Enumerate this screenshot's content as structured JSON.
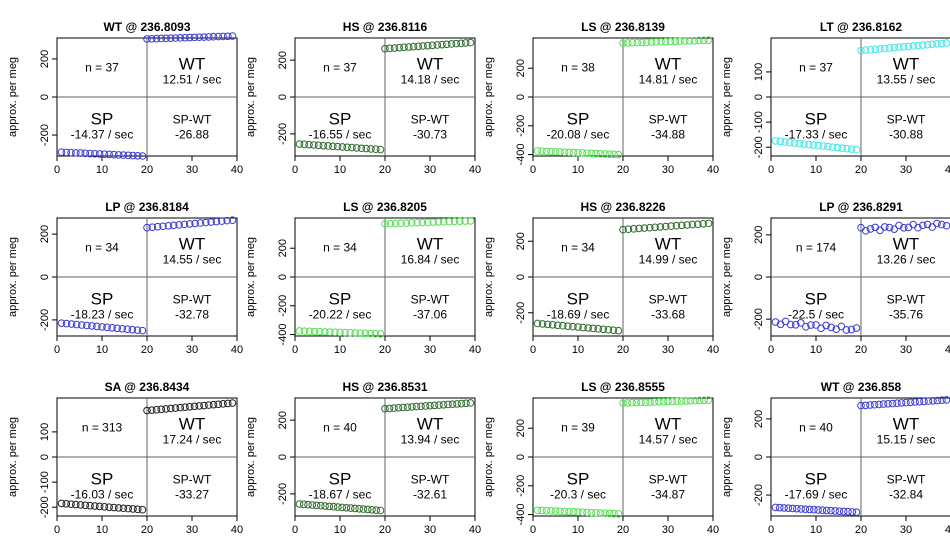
{
  "y_axis_label": "approx. per meg",
  "colors": {
    "blue": "#3b3bd6",
    "green_dark": "#2e6b2e",
    "green_light": "#54e054",
    "cyan": "#3fe8e8",
    "black": "#222222"
  },
  "chart_data": [
    {
      "type": "scatter",
      "title": "WT @ 236.8093",
      "n": "n = 37",
      "wt_label": "WT",
      "wt_rate": "12.51 / sec",
      "sp_label": "SP",
      "sp_rate": "-14.37 / sec",
      "diff_label": "SP-WT",
      "diff_value": "-26.88",
      "color": "blue",
      "xlim": [
        0,
        40
      ],
      "ylim": [
        -310,
        310
      ],
      "yticks": [
        -200,
        0,
        200
      ],
      "sp": {
        "n": 18,
        "start": -290,
        "end": -310,
        "noise": 0
      },
      "wt": {
        "n": 19,
        "start": 305,
        "end": 320,
        "noise": 0
      }
    },
    {
      "type": "scatter",
      "title": "HS @ 236.8116",
      "n": "n = 37",
      "wt_label": "WT",
      "wt_rate": "14.18 / sec",
      "sp_label": "SP",
      "sp_rate": "-16.55 / sec",
      "diff_label": "SP-WT",
      "diff_value": "-30.73",
      "color": "green_dark",
      "xlim": [
        0,
        40
      ],
      "ylim": [
        -320,
        320
      ],
      "yticks": [
        -200,
        0,
        200
      ],
      "sp": {
        "n": 18,
        "start": -255,
        "end": -285,
        "noise": 0
      },
      "wt": {
        "n": 19,
        "start": 262,
        "end": 295,
        "noise": 0
      }
    },
    {
      "type": "scatter",
      "title": "LS @ 236.8139",
      "n": "n = 38",
      "wt_label": "WT",
      "wt_rate": "14.81 / sec",
      "sp_label": "SP",
      "sp_rate": "-20.08 / sec",
      "diff_label": "SP-WT",
      "diff_value": "-34.88",
      "color": "green_light",
      "xlim": [
        0,
        40
      ],
      "ylim": [
        -410,
        410
      ],
      "yticks": [
        -400,
        -200,
        0,
        200
      ],
      "sp": {
        "n": 19,
        "start": -375,
        "end": -400,
        "noise": 0
      },
      "wt": {
        "n": 19,
        "start": 375,
        "end": 395,
        "noise": 0
      }
    },
    {
      "type": "scatter",
      "title": "LT @ 236.8162",
      "n": "n = 37",
      "wt_label": "WT",
      "wt_rate": "13.55 / sec",
      "sp_label": "SP",
      "sp_rate": "-17.33 / sec",
      "diff_label": "SP-WT",
      "diff_value": "-30.88",
      "color": "cyan",
      "xlim": [
        0,
        40
      ],
      "ylim": [
        -235,
        235
      ],
      "yticks": [
        -200,
        -100,
        0,
        100
      ],
      "sp": {
        "n": 18,
        "start": -175,
        "end": -210,
        "noise": 0
      },
      "wt": {
        "n": 19,
        "start": 185,
        "end": 215,
        "noise": 0
      }
    },
    {
      "type": "scatter",
      "title": "LP @ 236.8184",
      "n": "n = 34",
      "wt_label": "WT",
      "wt_rate": "14.55 / sec",
      "sp_label": "SP",
      "sp_rate": "-18.23 / sec",
      "diff_label": "SP-WT",
      "diff_value": "-32.78",
      "color": "blue",
      "xlim": [
        0,
        40
      ],
      "ylim": [
        -275,
        275
      ],
      "yticks": [
        -200,
        0,
        200
      ],
      "sp": {
        "n": 17,
        "start": -215,
        "end": -250,
        "noise": 0
      },
      "wt": {
        "n": 17,
        "start": 230,
        "end": 265,
        "noise": 0
      }
    },
    {
      "type": "scatter",
      "title": "LS @ 236.8205",
      "n": "n = 34",
      "wt_label": "WT",
      "wt_rate": "16.84 / sec",
      "sp_label": "SP",
      "sp_rate": "-20.22 / sec",
      "diff_label": "SP-WT",
      "diff_value": "-37.06",
      "color": "green_light",
      "xlim": [
        0,
        40
      ],
      "ylim": [
        -410,
        410
      ],
      "yticks": [
        -400,
        -200,
        0,
        200
      ],
      "sp": {
        "n": 17,
        "start": -375,
        "end": -395,
        "noise": 0
      },
      "wt": {
        "n": 17,
        "start": 370,
        "end": 390,
        "noise": 0
      }
    },
    {
      "type": "scatter",
      "title": "HS @ 236.8226",
      "n": "n = 34",
      "wt_label": "WT",
      "wt_rate": "14.99 / sec",
      "sp_label": "SP",
      "sp_rate": "-18.69 / sec",
      "diff_label": "SP-WT",
      "diff_value": "-33.68",
      "color": "green_dark",
      "xlim": [
        0,
        40
      ],
      "ylim": [
        -330,
        330
      ],
      "yticks": [
        -200,
        0,
        200
      ],
      "sp": {
        "n": 17,
        "start": -260,
        "end": -300,
        "noise": 0
      },
      "wt": {
        "n": 17,
        "start": 265,
        "end": 300,
        "noise": 0
      }
    },
    {
      "type": "scatter",
      "title": "LP @ 236.8291",
      "n": "n = 174",
      "wt_label": "WT",
      "wt_rate": "13.26 / sec",
      "sp_label": "SP",
      "sp_rate": "-22.5 / sec",
      "diff_label": "SP-WT",
      "diff_value": "-35.76",
      "color": "blue",
      "xlim": [
        0,
        40
      ],
      "ylim": [
        -280,
        280
      ],
      "yticks": [
        -200,
        0,
        200
      ],
      "sp": {
        "n": 17,
        "start": -215,
        "end": -250,
        "noise": 9
      },
      "wt": {
        "n": 19,
        "start": 225,
        "end": 250,
        "noise": 9
      }
    },
    {
      "type": "scatter",
      "title": "SA @ 236.8434",
      "n": "n = 313",
      "wt_label": "WT",
      "wt_rate": "17.24 / sec",
      "sp_label": "SP",
      "sp_rate": "-16.03 / sec",
      "diff_label": "SP-WT",
      "diff_value": "-33.27",
      "color": "black",
      "xlim": [
        0,
        40
      ],
      "ylim": [
        -235,
        235
      ],
      "yticks": [
        -200,
        -100,
        0,
        100
      ],
      "sp": {
        "n": 18,
        "start": -185,
        "end": -210,
        "noise": 0
      },
      "wt": {
        "n": 19,
        "start": 185,
        "end": 215,
        "noise": 0
      }
    },
    {
      "type": "scatter",
      "title": "HS @ 236.8531",
      "n": "n = 40",
      "wt_label": "WT",
      "wt_rate": "13.94 / sec",
      "sp_label": "SP",
      "sp_rate": "-18.67 / sec",
      "diff_label": "SP-WT",
      "diff_value": "-32.61",
      "color": "green_dark",
      "xlim": [
        0,
        40
      ],
      "ylim": [
        -320,
        320
      ],
      "yticks": [
        -200,
        0,
        200
      ],
      "sp": {
        "n": 20,
        "start": -255,
        "end": -290,
        "noise": 0
      },
      "wt": {
        "n": 20,
        "start": 262,
        "end": 293,
        "noise": 0
      }
    },
    {
      "type": "scatter",
      "title": "LS @ 236.8555",
      "n": "n = 39",
      "wt_label": "WT",
      "wt_rate": "14.57 / sec",
      "sp_label": "SP",
      "sp_rate": "-20.3 / sec",
      "diff_label": "SP-WT",
      "diff_value": "-34.87",
      "color": "green_light",
      "xlim": [
        0,
        40
      ],
      "ylim": [
        -410,
        410
      ],
      "yticks": [
        -400,
        -200,
        0,
        200
      ],
      "sp": {
        "n": 19,
        "start": -370,
        "end": -395,
        "noise": 0
      },
      "wt": {
        "n": 20,
        "start": 375,
        "end": 395,
        "noise": 0
      }
    },
    {
      "type": "scatter",
      "title": "WT @ 236.858",
      "n": "n = 40",
      "wt_label": "WT",
      "wt_rate": "15.15 / sec",
      "sp_label": "SP",
      "sp_rate": "-17.69 / sec",
      "diff_label": "SP-WT",
      "diff_value": "-32.84",
      "color": "blue",
      "xlim": [
        0,
        40
      ],
      "ylim": [
        -310,
        310
      ],
      "yticks": [
        -200,
        0,
        200
      ],
      "sp": {
        "n": 20,
        "start": -265,
        "end": -290,
        "noise": 0
      },
      "wt": {
        "n": 20,
        "start": 270,
        "end": 300,
        "noise": 0
      }
    }
  ]
}
